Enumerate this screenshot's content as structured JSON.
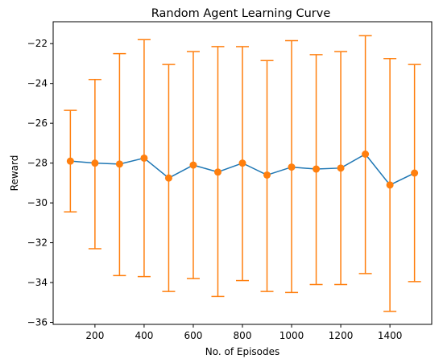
{
  "chart_data": {
    "type": "line",
    "title": "Random Agent Learning Curve",
    "xlabel": "No. of Episodes",
    "ylabel": "Reward",
    "xlim": [
      30,
      1570
    ],
    "ylim": [
      -36.1,
      -20.9
    ],
    "xticks": [
      200,
      400,
      600,
      800,
      1000,
      1200,
      1400
    ],
    "yticks": [
      -36,
      -34,
      -32,
      -30,
      -28,
      -26,
      -24,
      -22
    ],
    "grid": false,
    "legend": "none",
    "series": [
      {
        "x": [
          100,
          200,
          300,
          400,
          500,
          600,
          700,
          800,
          900,
          1000,
          1100,
          1200,
          1300,
          1400,
          1500
        ],
        "y": [
          -27.9,
          -28.0,
          -28.05,
          -27.75,
          -28.75,
          -28.1,
          -28.45,
          -28.0,
          -28.6,
          -28.2,
          -28.3,
          -28.25,
          -27.55,
          -29.1,
          -28.5
        ],
        "error_low": [
          -30.45,
          -32.3,
          -33.65,
          -33.7,
          -34.45,
          -33.8,
          -34.7,
          -33.9,
          -34.45,
          -34.5,
          -34.1,
          -34.1,
          -33.55,
          -35.45,
          -33.95
        ],
        "error_high": [
          -25.35,
          -23.8,
          -22.5,
          -21.8,
          -23.05,
          -22.4,
          -22.15,
          -22.15,
          -22.85,
          -21.85,
          -22.55,
          -22.4,
          -21.6,
          -22.75,
          -23.05
        ],
        "line_color": "#1f77b4",
        "marker_color": "#ff7f0e",
        "error_color": "#ff7f0e"
      }
    ]
  }
}
